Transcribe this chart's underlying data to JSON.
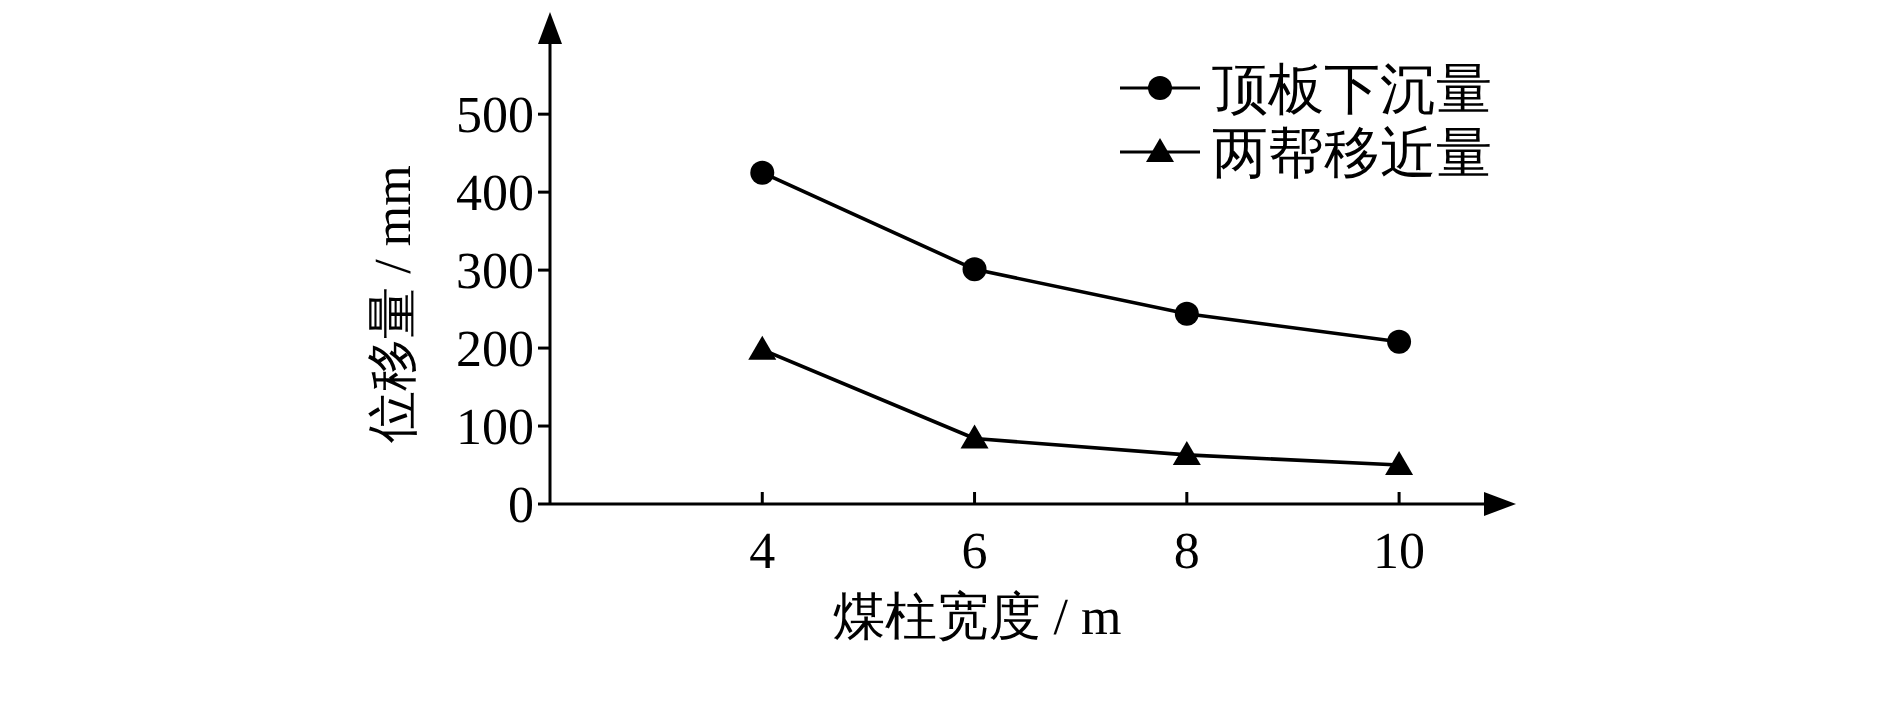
{
  "chart_data": {
    "type": "line",
    "xlabel": "煤柱宽度 / m",
    "ylabel": "位移量 / mm",
    "x": [
      4,
      6,
      8,
      10
    ],
    "series": [
      {
        "name": "顶板下沉量",
        "color": "#000000",
        "marker": "circle",
        "values": [
          425,
          301,
          244,
          208
        ]
      },
      {
        "name": "两帮移近量",
        "color": "#000000",
        "marker": "triangle",
        "values": [
          198,
          84,
          63,
          50
        ]
      }
    ],
    "xlim": [
      2,
      10.8
    ],
    "xticks": [
      4,
      6,
      8,
      10
    ],
    "ylim": [
      0,
      590
    ],
    "yticks": [
      0,
      100,
      200,
      300,
      400,
      500
    ],
    "grid": false,
    "legend": "top right",
    "line_style": "solid"
  }
}
